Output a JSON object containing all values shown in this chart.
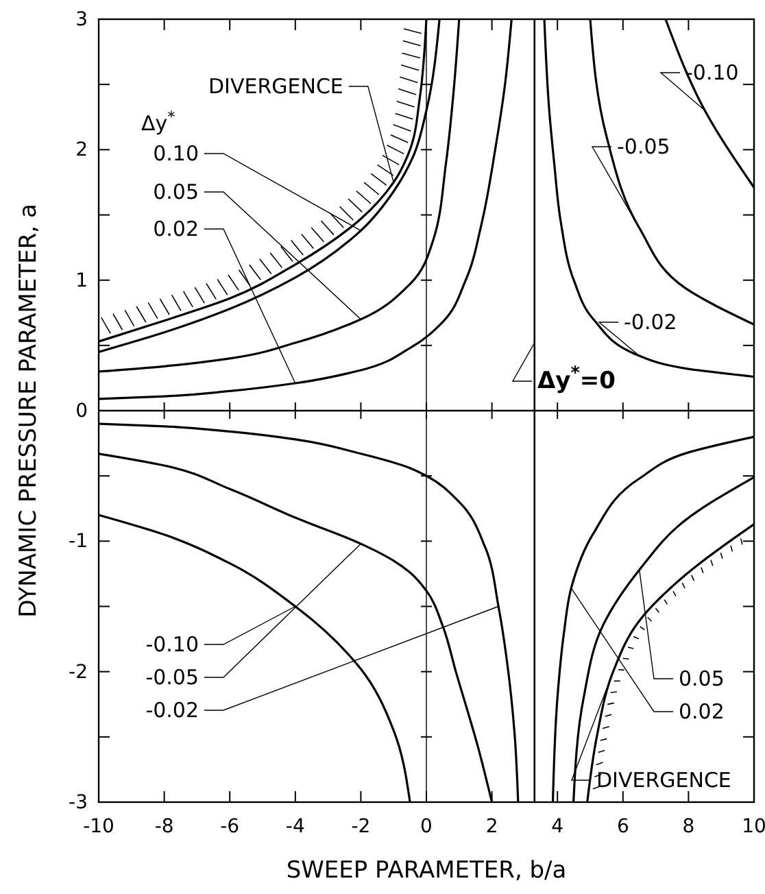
{
  "chart_data": {
    "type": "line",
    "xlabel": "SWEEP PARAMETER, b/a",
    "ylabel": "DYNAMIC PRESSURE PARAMETER, a",
    "xlim": [
      -10,
      10
    ],
    "xticks": [
      -10,
      -8,
      -6,
      -4,
      -2,
      0,
      2,
      4,
      6,
      8,
      10
    ],
    "ylim": [
      -3,
      3
    ],
    "yticks": [
      -3,
      {
        "value": -2.5,
        "label": null
      },
      -2,
      {
        "value": -1.5,
        "label": null
      },
      -1,
      {
        "value": -0.5,
        "label": null
      },
      0,
      {
        "value": 0.5,
        "label": null
      },
      1,
      {
        "value": 1.5,
        "label": null
      },
      2,
      {
        "value": 2.5,
        "label": null
      },
      3
    ],
    "grid": false,
    "marker": "none",
    "line_style": "solid",
    "series": [
      {
        "color": "#000000",
        "x": [
          -10,
          -8,
          -6,
          -4,
          -2,
          -1,
          -0.5,
          -0.2,
          0
        ],
        "values": [
          0.53,
          0.69,
          0.86,
          1.12,
          1.47,
          1.75,
          2.0,
          2.4,
          3.0
        ]
      },
      {
        "color": "#000000",
        "x": [
          -10,
          -8,
          -6,
          -4,
          -2,
          -1,
          -0.4,
          0,
          0.4
        ],
        "values": [
          0.45,
          0.6,
          0.78,
          1.02,
          1.38,
          1.68,
          1.95,
          2.3,
          3.0
        ]
      },
      {
        "color": "#000000",
        "x": [
          -10,
          -8,
          -6,
          -4,
          -2,
          -0.5,
          0.2,
          0.6,
          0.85,
          1.0
        ],
        "values": [
          0.3,
          0.34,
          0.4,
          0.52,
          0.7,
          0.97,
          1.3,
          1.9,
          2.5,
          3.0
        ]
      },
      {
        "color": "#000000",
        "x": [
          -10,
          -8,
          -6,
          -4,
          -2,
          -0.5,
          0.5,
          1.2,
          1.7,
          2.1,
          2.4,
          2.6
        ],
        "values": [
          0.09,
          0.11,
          0.15,
          0.21,
          0.31,
          0.48,
          0.68,
          1.0,
          1.45,
          2.0,
          2.5,
          3.0
        ]
      },
      {
        "color": "#000000",
        "x": [
          3.6,
          3.75,
          3.9,
          4.1,
          4.5,
          5.1,
          6.5,
          8,
          10
        ],
        "values": [
          3.0,
          2.3,
          1.9,
          1.45,
          1.0,
          0.7,
          0.42,
          0.32,
          0.26
        ]
      },
      {
        "color": "#000000",
        "x": [
          5.0,
          5.5,
          6.5,
          7.9,
          10
        ],
        "values": [
          3.0,
          2.1,
          1.4,
          0.94,
          0.66
        ]
      },
      {
        "color": "#000000",
        "x": [
          7.3,
          8.5,
          10
        ],
        "values": [
          3.0,
          2.3,
          1.71
        ]
      },
      {
        "color": "#000000",
        "x": [
          -10,
          -8,
          -6,
          -4,
          -2,
          -0.5,
          0,
          1,
          1.8,
          2.2,
          2.5,
          2.7,
          2.8
        ],
        "values": [
          -0.1,
          -0.12,
          -0.16,
          -0.22,
          -0.33,
          -0.44,
          -0.5,
          -0.7,
          -1.05,
          -1.5,
          -2.0,
          -2.5,
          -3.0
        ]
      },
      {
        "color": "#000000",
        "x": [
          -10,
          -8,
          -6,
          -4,
          -2,
          -1,
          -0.5,
          0,
          0.5,
          0.9,
          1.6,
          2.0
        ],
        "values": [
          -0.33,
          -0.42,
          -0.6,
          -0.82,
          -1.02,
          -1.15,
          -1.24,
          -1.38,
          -1.65,
          -2.0,
          -2.6,
          -3.0
        ]
      },
      {
        "color": "#000000",
        "x": [
          -10,
          -8,
          -6,
          -4,
          -2,
          -1,
          -0.5
        ],
        "values": [
          -0.8,
          -0.95,
          -1.17,
          -1.5,
          -1.98,
          -2.45,
          -3.0
        ]
      },
      {
        "color": "#000000",
        "x": [
          3.86,
          4.0,
          4.2,
          4.42,
          5.1,
          6.5,
          8,
          10
        ],
        "values": [
          -3.0,
          -2.2,
          -1.7,
          -1.36,
          -0.94,
          -0.52,
          -0.32,
          -0.2
        ]
      },
      {
        "color": "#000000",
        "x": [
          4.49,
          4.8,
          5.4,
          6.5,
          7.9,
          10
        ],
        "values": [
          -3.0,
          -2.2,
          -1.64,
          -1.22,
          -0.84,
          -0.51
        ]
      },
      {
        "color": "#000000",
        "x": [
          4.91,
          5.2,
          5.7,
          6.5,
          7.9,
          10
        ],
        "values": [
          -3.0,
          -2.5,
          -2.0,
          -1.61,
          -1.26,
          -0.87
        ]
      }
    ],
    "ref_lines": [
      {
        "axis": "x",
        "value": 3.3,
        "color": "#000000"
      },
      {
        "axis": "y",
        "value": 0,
        "color": "#000000"
      },
      {
        "axis": "x",
        "value": 0,
        "color": "#000000"
      }
    ],
    "annotations": [
      "Δy$^{*}$",
      {
        "text": "0.10",
        "x": -2,
        "y": 1.38
      },
      {
        "text": "0.05",
        "x": -2,
        "y": 0.7
      },
      {
        "text": "0.02",
        "x": -4,
        "y": 0.21
      },
      {
        "text": "-0.10",
        "x": 8.5,
        "y": 2.3
      },
      {
        "text": "-0.05",
        "x": 6.5,
        "y": 1.4
      },
      {
        "text": "-0.02",
        "x": 6.5,
        "y": 0.42
      },
      {
        "text": "-0.10",
        "x": -4,
        "y": -1.5
      },
      {
        "text": "-0.05",
        "x": -2,
        "y": -1.02
      },
      {
        "text": "-0.02",
        "x": 2.2,
        "y": -1.5
      },
      {
        "text": "0.05",
        "x": 6.5,
        "y": -1.22
      },
      {
        "text": "0.02",
        "x": 4.42,
        "y": -1.36
      },
      {
        "text": "Δy$^{*}$=0",
        "x": 3.3,
        "y": 0.52
      },
      {
        "text": "DIVERGENCE",
        "x": -1,
        "y": 1.75
      },
      {
        "text": "DIVERGENCE",
        "x": 5.7,
        "y": -2.0
      }
    ]
  }
}
